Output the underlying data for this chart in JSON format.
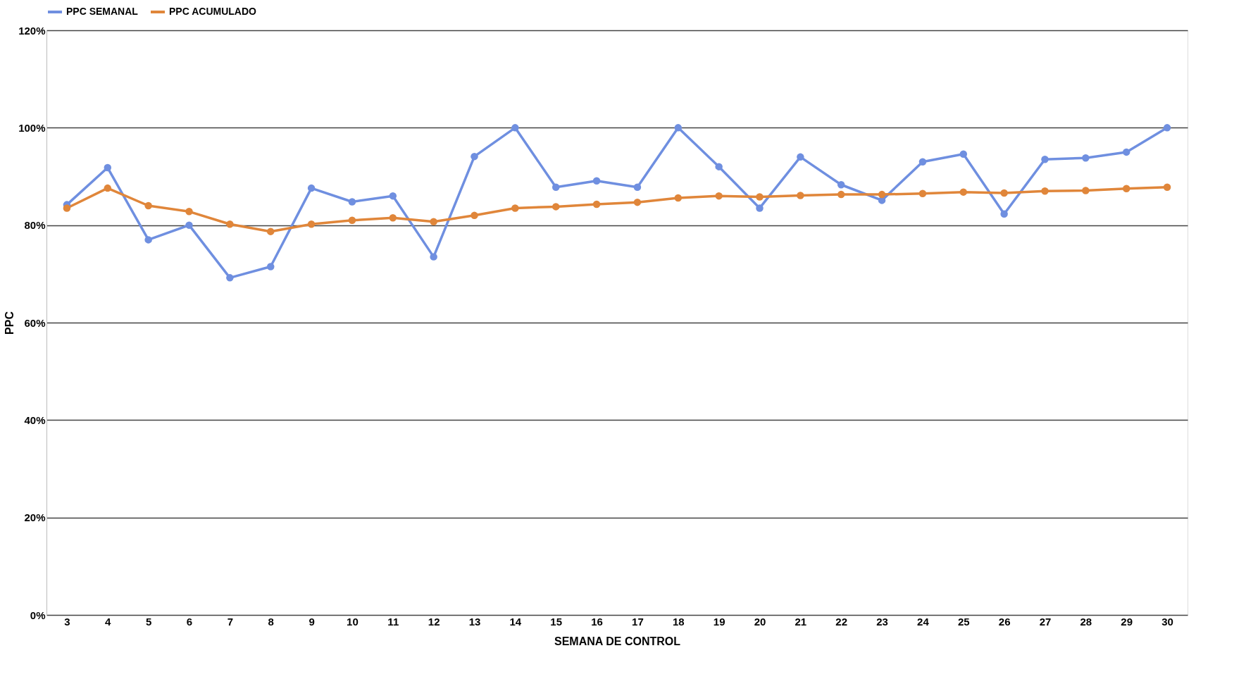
{
  "chart_data": {
    "type": "line",
    "xlabel": "SEMANA DE CONTROL",
    "ylabel": "PPC",
    "categories": [
      "3",
      "4",
      "5",
      "6",
      "7",
      "8",
      "9",
      "10",
      "11",
      "12",
      "13",
      "14",
      "15",
      "16",
      "17",
      "18",
      "19",
      "20",
      "21",
      "22",
      "23",
      "24",
      "25",
      "26",
      "27",
      "28",
      "29",
      "30"
    ],
    "series": [
      {
        "name": "PPC SEMANAL",
        "color": "#6f8fe0",
        "values": [
          84.2,
          91.8,
          77,
          80,
          69.2,
          71.5,
          87.6,
          84.8,
          86,
          73.5,
          94.1,
          100,
          87.8,
          89.1,
          87.8,
          100,
          92,
          83.5,
          94,
          88.3,
          85.1,
          93,
          94.6,
          82.3,
          93.5,
          93.8,
          95,
          100
        ]
      },
      {
        "name": "PPC ACUMULADO",
        "color": "#e0863a",
        "values": [
          83.5,
          87.6,
          84,
          82.8,
          80.2,
          78.7,
          80.2,
          81,
          81.5,
          80.7,
          82,
          83.5,
          83.8,
          84.3,
          84.7,
          85.6,
          86,
          85.8,
          86.1,
          86.3,
          86.3,
          86.5,
          86.8,
          86.6,
          87,
          87.1,
          87.5,
          87.8
        ]
      }
    ],
    "ylim": [
      0,
      120
    ],
    "yticks": [
      {
        "value": 0,
        "label": "0%"
      },
      {
        "value": 20,
        "label": "20%"
      },
      {
        "value": 40,
        "label": "40%"
      },
      {
        "value": 60,
        "label": "60%"
      },
      {
        "value": 80,
        "label": "80%"
      },
      {
        "value": 100,
        "label": "100%"
      },
      {
        "value": 120,
        "label": "120%"
      }
    ],
    "grid": "y",
    "legend": "top",
    "marker": "circle",
    "line_style": "solid"
  }
}
